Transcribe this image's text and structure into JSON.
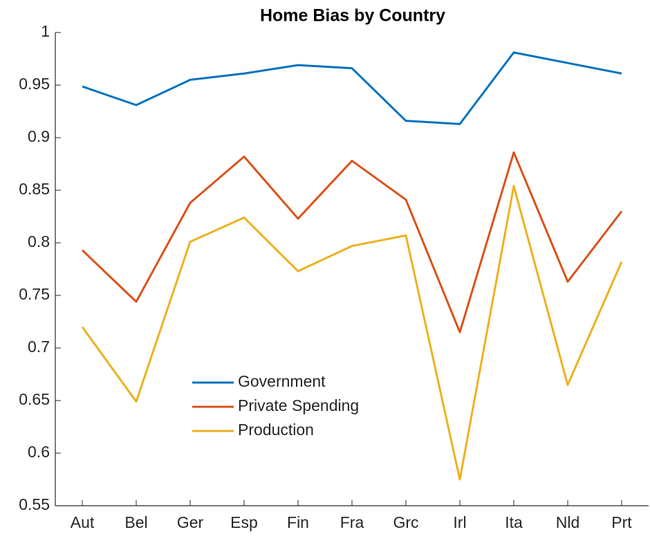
{
  "chart_data": {
    "type": "line",
    "title": "Home Bias by Country",
    "categories": [
      "Aut",
      "Bel",
      "Ger",
      "Esp",
      "Fin",
      "Fra",
      "Grc",
      "Irl",
      "Ita",
      "Nld",
      "Prt"
    ],
    "series": [
      {
        "name": "Government",
        "color": "#0072BD",
        "values": [
          0.9487,
          0.931,
          0.955,
          0.961,
          0.969,
          0.966,
          0.916,
          0.913,
          0.981,
          0.971,
          0.961
        ]
      },
      {
        "name": "Private Spending",
        "color": "#D95319",
        "values": [
          0.793,
          0.744,
          0.838,
          0.882,
          0.823,
          0.878,
          0.841,
          0.715,
          0.886,
          0.763,
          0.83
        ]
      },
      {
        "name": "Production",
        "color": "#EDB120",
        "values": [
          0.72,
          0.649,
          0.801,
          0.824,
          0.773,
          0.797,
          0.807,
          0.575,
          0.854,
          0.665,
          0.782
        ]
      }
    ],
    "ylim": [
      0.55,
      1
    ],
    "yticks": [
      0.55,
      0.6,
      0.65,
      0.7,
      0.75,
      0.8,
      0.85,
      0.9,
      0.95,
      1
    ],
    "grid": false,
    "legend": "center-left"
  }
}
